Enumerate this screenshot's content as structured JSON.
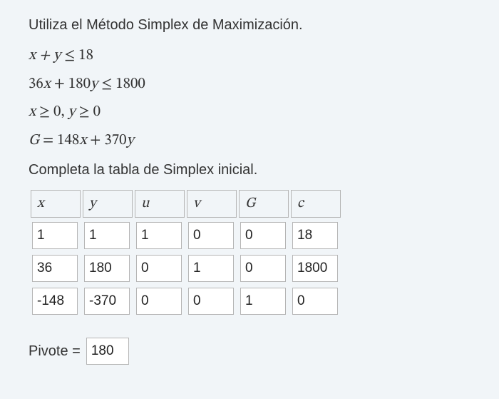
{
  "intro_text": "Utiliza el Método Simplex de Maximización.",
  "math": {
    "line1_prefix": "x + y",
    "line1_op": " ≤ ",
    "line1_rhs": "18",
    "line2_a": "36",
    "line2_x": "x",
    "line2_plus": " + ",
    "line2_b": "180",
    "line2_y": "y",
    "line2_op": " ≤ ",
    "line2_rhs": "1800",
    "line3_x": "x",
    "line3_g1": " ≥ 0, ",
    "line3_y": "y",
    "line3_g2": " ≥ 0",
    "line4_G": "G",
    "line4_eq": " = ",
    "line4_a": "148",
    "line4_x": "x",
    "line4_plus": " + ",
    "line4_b": "370",
    "line4_y": "y"
  },
  "subhead_text": "Completa la tabla de Simplex inicial.",
  "table": {
    "headers": [
      "x",
      "y",
      "u",
      "v",
      "G",
      "c"
    ],
    "rows": [
      [
        "1",
        "1",
        "1",
        "0",
        "0",
        "18"
      ],
      [
        "36",
        "180",
        "0",
        "1",
        "0",
        "1800"
      ],
      [
        "-148",
        "-370",
        "0",
        "0",
        "1",
        "0"
      ]
    ],
    "cell_border": "#b5b5b5",
    "cell_bg": "#ffffff"
  },
  "pivot": {
    "label": "Pivote =",
    "value": "180"
  },
  "background": "#f1f5f8"
}
